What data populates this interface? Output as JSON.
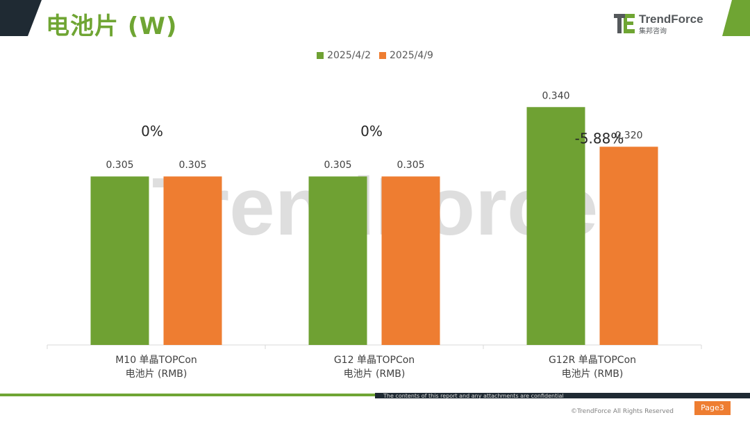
{
  "slide": {
    "title": "电池片 (W)"
  },
  "brand": {
    "name": "TrendForce",
    "sub": "集邦咨询",
    "colors": {
      "green": "#6fa533",
      "gray": "#55595c"
    }
  },
  "footer": {
    "note": "The contents of this report and any attachments are confidential",
    "copyright": "©TrendForce All Rights Reserved",
    "page": "Page3"
  },
  "chart_data": {
    "type": "bar",
    "categories": [
      [
        "M10 单晶TOPCon",
        "电池片 (RMB)"
      ],
      [
        "G12 单晶TOPCon",
        "电池片 (RMB)"
      ],
      [
        "G12R 单晶TOPCon",
        "电池片 (RMB)"
      ]
    ],
    "series": [
      {
        "name": "2025/4/2",
        "color": "#6fa133",
        "values": [
          0.305,
          0.305,
          0.34
        ],
        "labels": [
          "0.305",
          "0.305",
          "0.340"
        ]
      },
      {
        "name": "2025/4/9",
        "color": "#ee7d31",
        "values": [
          0.305,
          0.305,
          0.32
        ],
        "labels": [
          "0.305",
          "0.305",
          "0.320"
        ]
      }
    ],
    "annotations": [
      "0%",
      "0%",
      "-5.88%"
    ],
    "ylim": [
      0.22,
      0.345
    ],
    "legend": "top-center",
    "grid": false,
    "watermark": "TrendForce"
  }
}
